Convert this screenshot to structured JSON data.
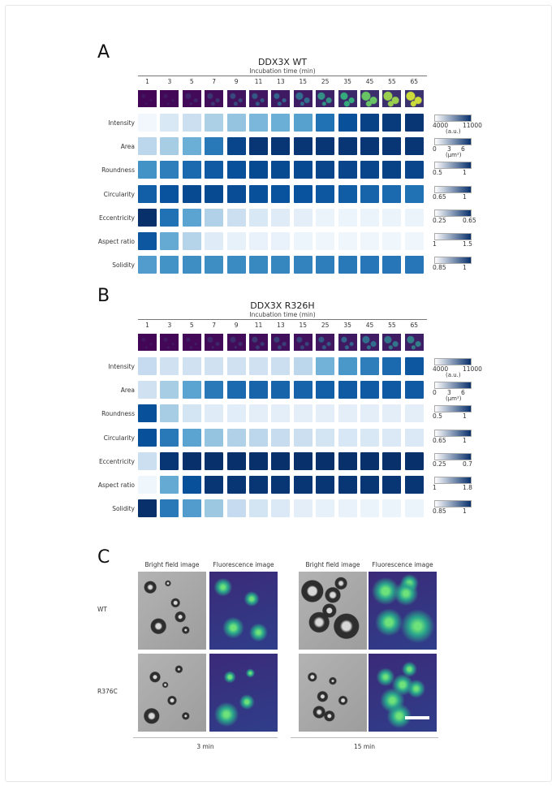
{
  "panels": [
    {
      "label": "A",
      "title": "DDX3X WT",
      "subtitle": "Incubation time (min)",
      "times": [
        "1",
        "3",
        "5",
        "7",
        "9",
        "11",
        "13",
        "15",
        "25",
        "35",
        "45",
        "55",
        "65"
      ],
      "thumb_intensity": [
        0.1,
        0.12,
        0.18,
        0.25,
        0.35,
        0.42,
        0.48,
        0.52,
        0.65,
        0.75,
        0.85,
        0.9,
        0.95
      ],
      "rows": [
        {
          "name": "Intensity",
          "values": [
            0.03,
            0.15,
            0.22,
            0.33,
            0.4,
            0.46,
            0.5,
            0.56,
            0.75,
            0.88,
            0.93,
            0.96,
            0.98
          ],
          "cb": {
            "min": "4000",
            "max": "11000",
            "unit": "(a.u.)"
          }
        },
        {
          "name": "Area",
          "values": [
            0.28,
            0.35,
            0.5,
            0.72,
            0.92,
            0.98,
            0.98,
            0.98,
            0.98,
            0.98,
            0.98,
            0.98,
            0.98
          ],
          "cb": {
            "min": "0",
            "mid": "3",
            "max": "6",
            "unit": "(μm²)"
          }
        },
        {
          "name": "Roundness",
          "values": [
            0.62,
            0.7,
            0.78,
            0.84,
            0.88,
            0.9,
            0.9,
            0.9,
            0.92,
            0.92,
            0.92,
            0.93,
            0.92
          ],
          "cb": {
            "min": "0.5",
            "max": "1"
          }
        },
        {
          "name": "Circularity",
          "values": [
            0.82,
            0.87,
            0.9,
            0.9,
            0.89,
            0.88,
            0.87,
            0.87,
            0.85,
            0.83,
            0.8,
            0.78,
            0.75
          ],
          "cb": {
            "min": "0.65",
            "max": "1"
          }
        },
        {
          "name": "Eccentricity",
          "values": [
            1.0,
            0.75,
            0.55,
            0.32,
            0.22,
            0.15,
            0.12,
            0.1,
            0.06,
            0.05,
            0.06,
            0.06,
            0.06
          ],
          "cb": {
            "min": "0.25",
            "max": "0.65"
          }
        },
        {
          "name": "Aspect ratio",
          "values": [
            0.85,
            0.52,
            0.3,
            0.12,
            0.08,
            0.07,
            0.07,
            0.05,
            0.04,
            0.04,
            0.04,
            0.04,
            0.04
          ],
          "cb": {
            "min": "1",
            "max": "1.5"
          }
        },
        {
          "name": "Solidity",
          "values": [
            0.58,
            0.62,
            0.64,
            0.64,
            0.65,
            0.66,
            0.67,
            0.68,
            0.7,
            0.72,
            0.73,
            0.73,
            0.73
          ],
          "cb": {
            "min": "0.85",
            "max": "1"
          }
        }
      ]
    },
    {
      "label": "B",
      "title": "DDX3X R326H",
      "subtitle": "Incubation time (min)",
      "times": [
        "1",
        "3",
        "5",
        "7",
        "9",
        "11",
        "13",
        "15",
        "25",
        "35",
        "45",
        "55",
        "65"
      ],
      "thumb_intensity": [
        0.1,
        0.12,
        0.14,
        0.18,
        0.22,
        0.26,
        0.3,
        0.32,
        0.42,
        0.48,
        0.52,
        0.55,
        0.58
      ],
      "rows": [
        {
          "name": "Intensity",
          "values": [
            0.25,
            0.2,
            0.2,
            0.2,
            0.2,
            0.2,
            0.22,
            0.28,
            0.48,
            0.6,
            0.7,
            0.78,
            0.85
          ],
          "cb": {
            "min": "4000",
            "max": "11000",
            "unit": "(a.u.)"
          }
        },
        {
          "name": "Area",
          "values": [
            0.2,
            0.35,
            0.55,
            0.72,
            0.78,
            0.8,
            0.8,
            0.8,
            0.82,
            0.84,
            0.84,
            0.84,
            0.84
          ],
          "cb": {
            "min": "0",
            "mid": "3",
            "max": "6",
            "unit": "(μm²)"
          }
        },
        {
          "name": "Roundness",
          "values": [
            0.88,
            0.35,
            0.18,
            0.12,
            0.11,
            0.1,
            0.1,
            0.1,
            0.1,
            0.1,
            0.1,
            0.1,
            0.1
          ],
          "cb": {
            "min": "0.5",
            "max": "1"
          }
        },
        {
          "name": "Circularity",
          "values": [
            0.88,
            0.72,
            0.55,
            0.4,
            0.32,
            0.28,
            0.24,
            0.22,
            0.18,
            0.16,
            0.15,
            0.14,
            0.14
          ],
          "cb": {
            "min": "0.65",
            "max": "1"
          }
        },
        {
          "name": "Eccentricity",
          "values": [
            0.22,
            0.98,
            1.0,
            1.0,
            1.0,
            1.0,
            1.0,
            1.0,
            1.0,
            1.0,
            1.0,
            1.0,
            1.0
          ],
          "cb": {
            "min": "0.25",
            "max": "0.7"
          }
        },
        {
          "name": "Aspect ratio",
          "values": [
            0.04,
            0.52,
            0.88,
            0.98,
            0.98,
            0.98,
            0.98,
            0.98,
            0.98,
            0.98,
            0.98,
            0.98,
            0.98
          ],
          "cb": {
            "min": "1",
            "max": "1.8"
          }
        },
        {
          "name": "Solidity",
          "values": [
            1.0,
            0.72,
            0.58,
            0.38,
            0.25,
            0.18,
            0.14,
            0.1,
            0.08,
            0.07,
            0.06,
            0.06,
            0.06
          ],
          "cb": {
            "min": "0.85",
            "max": "1"
          }
        }
      ]
    }
  ],
  "panel_c": {
    "label": "C",
    "col_headers": [
      "Bright field image",
      "Fluorescence image",
      "Bright field image",
      "Fluorescence image"
    ],
    "row_labels": [
      "WT",
      "R376C"
    ],
    "time_labels": [
      "3 min",
      "15 min"
    ]
  },
  "colors": {
    "heat_low": "#f7fbff",
    "heat_high": "#08306b",
    "fluor_bg": "#3d2a7a",
    "fluor_spot": "#2fe08a",
    "bf_bg": "#a9a9a9"
  }
}
